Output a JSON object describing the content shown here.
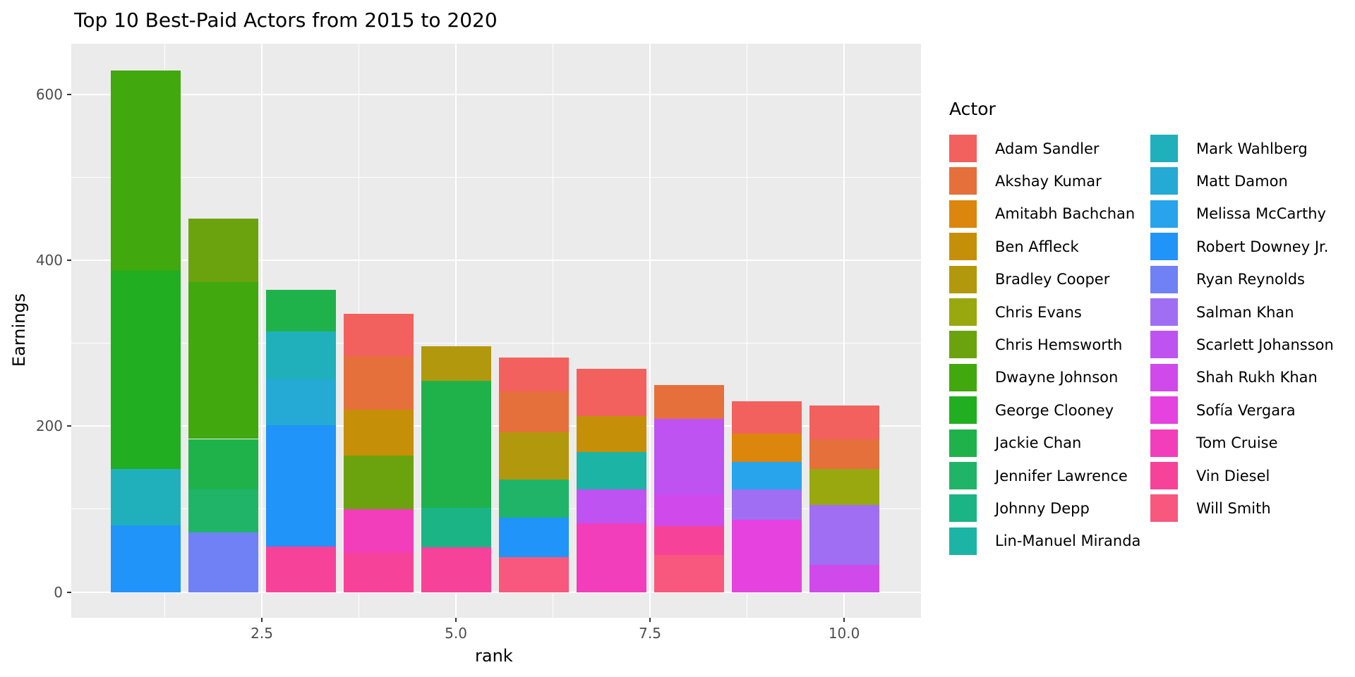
{
  "chart_data": {
    "type": "bar",
    "stacked": true,
    "title": "Top 10 Best-Paid Actors from 2015 to 2020",
    "xlabel": "rank",
    "ylabel": "Earnings",
    "legend_title": "Actor",
    "panel_bg": "#EBEBEB",
    "grid_color": "#FFFFFF",
    "tick_label_color": "#4D4D4D",
    "xlim": [
      0.045,
      10.99
    ],
    "ylim": [
      -31,
      661
    ],
    "x_ticks": [
      {
        "value": 2.5,
        "label": "2.5"
      },
      {
        "value": 5.0,
        "label": "5.0"
      },
      {
        "value": 7.5,
        "label": "7.5"
      },
      {
        "value": 10.0,
        "label": "10.0"
      }
    ],
    "y_ticks": [
      {
        "value": 0,
        "label": "0"
      },
      {
        "value": 200,
        "label": "200"
      },
      {
        "value": 400,
        "label": "400"
      },
      {
        "value": 600,
        "label": "600"
      }
    ],
    "minor_x": [
      1.25,
      3.75,
      6.25,
      8.75
    ],
    "minor_y": [
      100,
      300,
      500
    ],
    "bar_width_units": 0.9,
    "legend_columns": [
      13,
      12
    ],
    "actors": [
      {
        "name": "Adam Sandler",
        "color": "#F2615D"
      },
      {
        "name": "Akshay Kumar",
        "color": "#E5703B"
      },
      {
        "name": "Amitabh Bachchan",
        "color": "#DC860D"
      },
      {
        "name": "Ben Affleck",
        "color": "#C68F08"
      },
      {
        "name": "Bradley Cooper",
        "color": "#B2980C"
      },
      {
        "name": "Chris Evans",
        "color": "#98A80E"
      },
      {
        "name": "Chris Hemsworth",
        "color": "#6BA30F"
      },
      {
        "name": "Dwayne Johnson",
        "color": "#41A80D"
      },
      {
        "name": "George Clooney",
        "color": "#21AE20"
      },
      {
        "name": "Jackie Chan",
        "color": "#1FB24B"
      },
      {
        "name": "Jennifer Lawrence",
        "color": "#20B468"
      },
      {
        "name": "Johnny Depp",
        "color": "#1AB485"
      },
      {
        "name": "Lin-Manuel Miranda",
        "color": "#1CB4A5"
      },
      {
        "name": "Mark Wahlberg",
        "color": "#1FB0BC"
      },
      {
        "name": "Matt Damon",
        "color": "#24AAD5"
      },
      {
        "name": "Melissa McCarthy",
        "color": "#27A4EC"
      },
      {
        "name": "Robert Downey Jr.",
        "color": "#2094F8"
      },
      {
        "name": "Ryan Reynolds",
        "color": "#6F81F5"
      },
      {
        "name": "Salman Khan",
        "color": "#A06EF3"
      },
      {
        "name": "Scarlett Johansson",
        "color": "#BE53F2"
      },
      {
        "name": "Shah Rukh Khan",
        "color": "#D04AEB"
      },
      {
        "name": "Sofía Vergara",
        "color": "#E542DF"
      },
      {
        "name": "Tom Cruise",
        "color": "#F23EBA"
      },
      {
        "name": "Vin Diesel",
        "color": "#F74299"
      },
      {
        "name": "Will Smith",
        "color": "#F8577E"
      }
    ],
    "bars": [
      {
        "rank": 1,
        "segments": [
          {
            "actor": "Robert Downey Jr.",
            "value": 80
          },
          {
            "actor": "Mark Wahlberg",
            "value": 68
          },
          {
            "actor": "George Clooney",
            "value": 239
          },
          {
            "actor": "Dwayne Johnson",
            "value": 241.4
          }
        ]
      },
      {
        "rank": 2,
        "segments": [
          {
            "actor": "Ryan Reynolds",
            "value": 71.5
          },
          {
            "actor": "Jennifer Lawrence",
            "value": 52
          },
          {
            "actor": "Jackie Chan",
            "value": 61
          },
          {
            "actor": "Dwayne Johnson",
            "value": 189
          },
          {
            "actor": "Chris Hemsworth",
            "value": 76.4
          }
        ]
      },
      {
        "rank": 3,
        "segments": [
          {
            "actor": "Vin Diesel",
            "value": 54.5
          },
          {
            "actor": "Robert Downey Jr.",
            "value": 147
          },
          {
            "actor": "Matt Damon",
            "value": 55
          },
          {
            "actor": "Mark Wahlberg",
            "value": 58
          },
          {
            "actor": "Jackie Chan",
            "value": 50
          }
        ]
      },
      {
        "rank": 4,
        "segments": [
          {
            "actor": "Vin Diesel",
            "value": 47
          },
          {
            "actor": "Tom Cruise",
            "value": 53
          },
          {
            "actor": "Chris Hemsworth",
            "value": 64.5
          },
          {
            "actor": "Ben Affleck",
            "value": 55
          },
          {
            "actor": "Akshay Kumar",
            "value": 65
          },
          {
            "actor": "Adam Sandler",
            "value": 50.5
          }
        ]
      },
      {
        "rank": 5,
        "segments": [
          {
            "actor": "Vin Diesel",
            "value": 54
          },
          {
            "actor": "Johnny Depp",
            "value": 48
          },
          {
            "actor": "Jackie Chan",
            "value": 152.5
          },
          {
            "actor": "Bradley Cooper",
            "value": 41.5
          }
        ]
      },
      {
        "rank": 6,
        "segments": [
          {
            "actor": "Will Smith",
            "value": 42
          },
          {
            "actor": "Robert Downey Jr.",
            "value": 48
          },
          {
            "actor": "Jennifer Lawrence",
            "value": 46
          },
          {
            "actor": "Bradley Cooper",
            "value": 57
          },
          {
            "actor": "Akshay Kumar",
            "value": 48.5
          },
          {
            "actor": "Adam Sandler",
            "value": 41
          }
        ]
      },
      {
        "rank": 7,
        "segments": [
          {
            "actor": "Tom Cruise",
            "value": 83
          },
          {
            "actor": "Scarlett Johansson",
            "value": 40.5
          },
          {
            "actor": "Lin-Manuel Miranda",
            "value": 45.5
          },
          {
            "actor": "Ben Affleck",
            "value": 43
          },
          {
            "actor": "Adam Sandler",
            "value": 57
          }
        ]
      },
      {
        "rank": 8,
        "segments": [
          {
            "actor": "Will Smith",
            "value": 44.5
          },
          {
            "actor": "Vin Diesel",
            "value": 35
          },
          {
            "actor": "Shah Rukh Khan",
            "value": 38
          },
          {
            "actor": "Scarlett Johansson",
            "value": 91.5
          },
          {
            "actor": "Akshay Kumar",
            "value": 40.5
          }
        ]
      },
      {
        "rank": 9,
        "segments": [
          {
            "actor": "Sofía Vergara",
            "value": 87.1
          },
          {
            "actor": "Salman Khan",
            "value": 37
          },
          {
            "actor": "Melissa McCarthy",
            "value": 33
          },
          {
            "actor": "Amitabh Bachchan",
            "value": 33.5
          },
          {
            "actor": "Adam Sandler",
            "value": 39.5
          }
        ]
      },
      {
        "rank": 10,
        "segments": [
          {
            "actor": "Shah Rukh Khan",
            "value": 33
          },
          {
            "actor": "Salman Khan",
            "value": 72
          },
          {
            "actor": "Chris Evans",
            "value": 43.5
          },
          {
            "actor": "Akshay Kumar",
            "value": 35.5
          },
          {
            "actor": "Adam Sandler",
            "value": 41
          }
        ]
      }
    ]
  }
}
